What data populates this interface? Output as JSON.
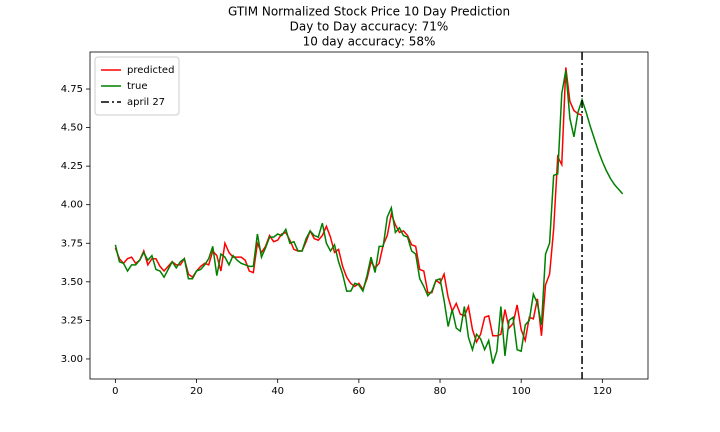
{
  "chart_data": {
    "type": "line",
    "title": [
      "GTIM Normalized Stock Price 10 Day Prediction",
      "Day to Day accuracy: 71%",
      "10 day accuracy: 58%"
    ],
    "x": [
      0,
      1,
      2,
      3,
      4,
      5,
      6,
      7,
      8,
      9,
      10,
      11,
      12,
      13,
      14,
      15,
      16,
      17,
      18,
      19,
      20,
      21,
      22,
      23,
      24,
      25,
      26,
      27,
      28,
      29,
      30,
      31,
      32,
      33,
      34,
      35,
      36,
      37,
      38,
      39,
      40,
      41,
      42,
      43,
      44,
      45,
      46,
      47,
      48,
      49,
      50,
      51,
      52,
      53,
      54,
      55,
      56,
      57,
      58,
      59,
      60,
      61,
      62,
      63,
      64,
      65,
      66,
      67,
      68,
      69,
      70,
      71,
      72,
      73,
      74,
      75,
      76,
      77,
      78,
      79,
      80,
      81,
      82,
      83,
      84,
      85,
      86,
      87,
      88,
      89,
      90,
      91,
      92,
      93,
      94,
      95,
      96,
      97,
      98,
      99,
      100,
      101,
      102,
      103,
      104,
      105,
      106,
      107,
      108,
      109,
      110,
      111,
      112,
      113,
      114,
      115,
      116,
      117,
      118,
      119,
      120,
      121,
      122,
      123,
      124,
      125
    ],
    "series": [
      {
        "name": "predicted",
        "color": "#ff0000",
        "values": [
          3.72,
          3.65,
          3.62,
          3.65,
          3.66,
          3.62,
          3.64,
          3.7,
          3.61,
          3.65,
          3.65,
          3.6,
          3.57,
          3.6,
          3.63,
          3.61,
          3.61,
          3.65,
          3.55,
          3.53,
          3.57,
          3.6,
          3.62,
          3.61,
          3.7,
          3.67,
          3.57,
          3.75,
          3.69,
          3.66,
          3.66,
          3.66,
          3.64,
          3.57,
          3.56,
          3.75,
          3.69,
          3.73,
          3.8,
          3.76,
          3.77,
          3.81,
          3.82,
          3.77,
          3.71,
          3.7,
          3.7,
          3.76,
          3.83,
          3.78,
          3.77,
          3.8,
          3.86,
          3.79,
          3.69,
          3.71,
          3.6,
          3.53,
          3.49,
          3.47,
          3.49,
          3.45,
          3.52,
          3.63,
          3.59,
          3.62,
          3.74,
          3.8,
          3.94,
          3.87,
          3.82,
          3.83,
          3.8,
          3.74,
          3.73,
          3.58,
          3.57,
          3.43,
          3.43,
          3.51,
          3.49,
          3.55,
          3.4,
          3.31,
          3.36,
          3.29,
          3.28,
          3.34,
          3.19,
          3.11,
          3.16,
          3.27,
          3.28,
          3.15,
          3.15,
          3.16,
          3.32,
          3.2,
          3.23,
          3.35,
          3.19,
          3.12,
          3.27,
          3.26,
          3.39,
          3.15,
          3.48,
          3.55,
          3.84,
          4.31,
          4.26,
          4.89,
          4.67,
          4.61,
          4.59,
          4.58,
          null,
          null,
          null,
          null,
          null,
          null,
          null,
          null,
          null,
          null
        ]
      },
      {
        "name": "true",
        "color": "#008000",
        "values": [
          3.74,
          3.63,
          3.62,
          3.57,
          3.61,
          3.61,
          3.64,
          3.69,
          3.64,
          3.67,
          3.58,
          3.57,
          3.53,
          3.58,
          3.63,
          3.59,
          3.63,
          3.65,
          3.52,
          3.52,
          3.57,
          3.58,
          3.61,
          3.65,
          3.73,
          3.54,
          3.68,
          3.66,
          3.61,
          3.67,
          3.64,
          3.62,
          3.61,
          3.6,
          3.6,
          3.81,
          3.66,
          3.72,
          3.79,
          3.79,
          3.81,
          3.8,
          3.84,
          3.75,
          3.76,
          3.7,
          3.7,
          3.78,
          3.83,
          3.8,
          3.79,
          3.88,
          3.75,
          3.7,
          3.74,
          3.63,
          3.55,
          3.44,
          3.44,
          3.49,
          3.48,
          3.44,
          3.54,
          3.66,
          3.56,
          3.73,
          3.73,
          3.92,
          3.98,
          3.82,
          3.85,
          3.8,
          3.79,
          3.7,
          3.68,
          3.52,
          3.47,
          3.41,
          3.44,
          3.51,
          3.52,
          3.38,
          3.21,
          3.32,
          3.2,
          3.18,
          3.34,
          3.14,
          3.06,
          3.16,
          3.13,
          3.06,
          3.12,
          2.97,
          3.05,
          3.34,
          3.02,
          3.25,
          3.27,
          3.06,
          3.05,
          3.22,
          3.25,
          3.42,
          3.36,
          3.22,
          3.68,
          3.75,
          4.19,
          4.2,
          4.72,
          4.87,
          4.56,
          4.44,
          4.6,
          4.68,
          4.6,
          4.51,
          4.43,
          4.35,
          4.28,
          4.22,
          4.17,
          4.13,
          4.1,
          4.07
        ]
      }
    ],
    "vlines": [
      {
        "x": 115,
        "label": "april 27",
        "color": "#000000"
      }
    ],
    "xlim": [
      -6.25,
      131.25
    ],
    "xticks": [
      0,
      20,
      40,
      60,
      80,
      100,
      120
    ],
    "ylim": [
      2.87,
      4.99
    ],
    "yticks": [
      {
        "value": 3,
        "label": "3.00"
      },
      {
        "value": 3.25,
        "label": "3.25"
      },
      {
        "value": 3.5,
        "label": "3.50"
      },
      {
        "value": 3.75,
        "label": "3.75"
      },
      {
        "value": 4,
        "label": "4.00"
      },
      {
        "value": 4.25,
        "label": "4.25"
      },
      {
        "value": 4.5,
        "label": "4.50"
      },
      {
        "value": 4.75,
        "label": "4.75"
      }
    ],
    "legend": "upper left"
  }
}
